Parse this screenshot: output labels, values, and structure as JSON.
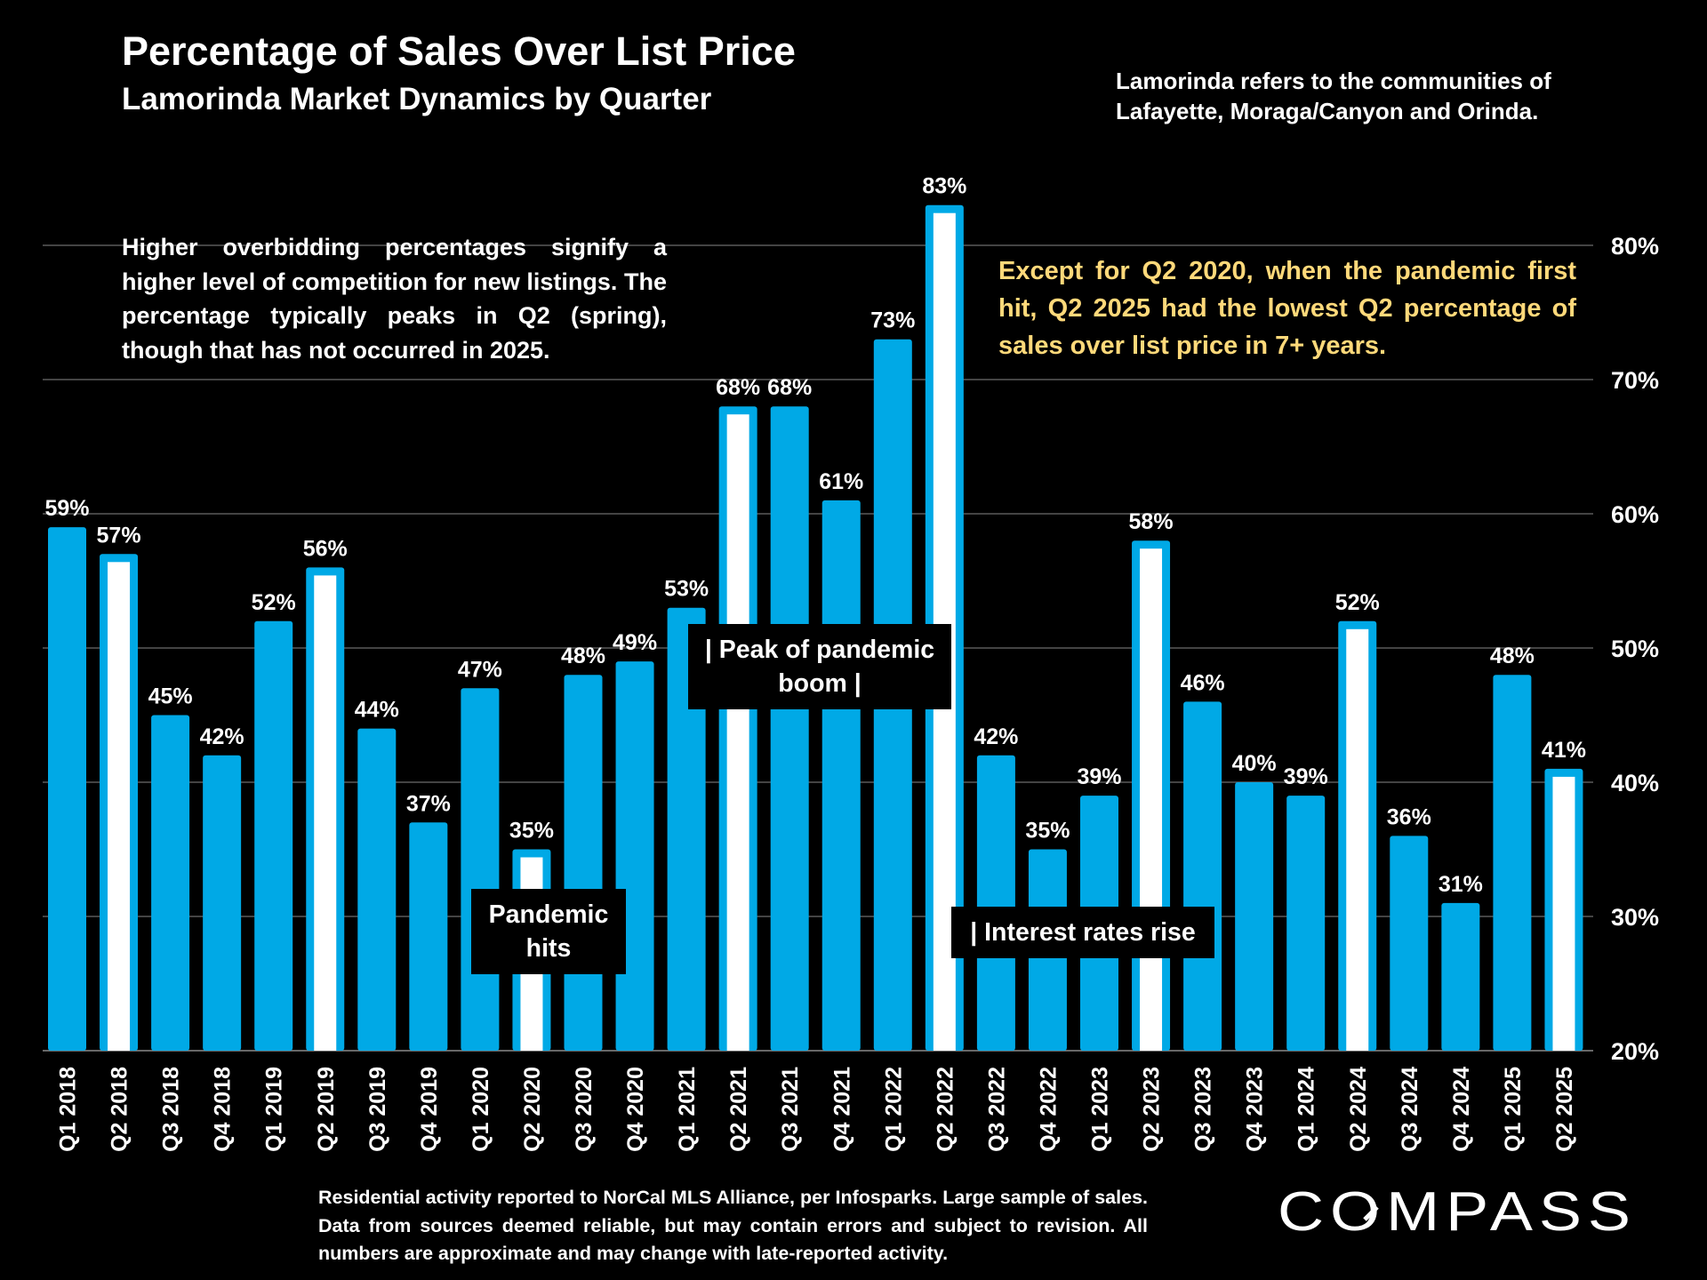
{
  "header": {
    "title": "Percentage of Sales Over List Price",
    "subtitle": "Lamorinda Market Dynamics by Quarter"
  },
  "notes": {
    "top_right": "Lamorinda refers to the communities of Lafayette, Moraga/Canyon and Orinda.",
    "left": "Higher overbidding percentages signify a higher level of competition for new listings. The percentage typically peaks in Q2 (spring), though that has not occurred in 2025.",
    "right": "Except for Q2 2020, when the pandemic first hit, Q2 2025 had the lowest Q2 percentage of sales over list price in 7+ years."
  },
  "annotations": {
    "pandemic_hits": "Pandemic hits",
    "peak_boom": "| Peak of pandemic boom |",
    "interest_rates": "| Interest rates rise"
  },
  "footnote": "Residential activity reported to NorCal MLS Alliance, per Infosparks. Large sample of sales. Data from sources deemed reliable, but may contain errors and subject to revision. All numbers are approximate and may change with late-reported activity.",
  "logo": {
    "text": "COMPASS"
  },
  "colors": {
    "bar": "#00a9e6",
    "highlight_fill": "#ffffff",
    "background": "#000000",
    "note_yellow": "#ffd97a",
    "gridline": "#5a5a5a"
  },
  "chart_data": {
    "type": "bar",
    "categories": [
      "Q1 2018",
      "Q2 2018",
      "Q3 2018",
      "Q4 2018",
      "Q1 2019",
      "Q2 2019",
      "Q3 2019",
      "Q4 2019",
      "Q1 2020",
      "Q2 2020",
      "Q3 2020",
      "Q4 2020",
      "Q1 2021",
      "Q2 2021",
      "Q3 2021",
      "Q4 2021",
      "Q1 2022",
      "Q2 2022",
      "Q3 2022",
      "Q4 2022",
      "Q1 2023",
      "Q2 2023",
      "Q3 2023",
      "Q4 2023",
      "Q1 2024",
      "Q2 2024",
      "Q3 2024",
      "Q4 2024",
      "Q1 2025",
      "Q2 2025"
    ],
    "values": [
      59,
      57,
      45,
      42,
      52,
      56,
      44,
      37,
      47,
      35,
      48,
      49,
      53,
      68,
      68,
      61,
      73,
      83,
      42,
      35,
      39,
      58,
      46,
      40,
      39,
      52,
      36,
      31,
      48,
      41
    ],
    "value_labels": [
      "59%",
      "57%",
      "45%",
      "42%",
      "52%",
      "56%",
      "44%",
      "37%",
      "47%",
      "35%",
      "48%",
      "49%",
      "53%",
      "68%",
      "68%",
      "61%",
      "73%",
      "83%",
      "42%",
      "35%",
      "39%",
      "58%",
      "46%",
      "40%",
      "39%",
      "52%",
      "36%",
      "31%",
      "48%",
      "41%"
    ],
    "highlighted": [
      false,
      true,
      false,
      false,
      false,
      true,
      false,
      false,
      false,
      true,
      false,
      false,
      false,
      true,
      false,
      false,
      false,
      true,
      false,
      false,
      false,
      true,
      false,
      false,
      false,
      true,
      false,
      false,
      false,
      true
    ],
    "y_ticks": [
      20,
      30,
      40,
      50,
      60,
      70,
      80
    ],
    "y_tick_labels": [
      "20%",
      "30%",
      "40%",
      "50%",
      "60%",
      "70%",
      "80%"
    ],
    "ylim": [
      20,
      83
    ],
    "y_axis_side": "right",
    "grid": true,
    "title": "Percentage of Sales Over List Price",
    "xlabel": "",
    "ylabel": ""
  }
}
